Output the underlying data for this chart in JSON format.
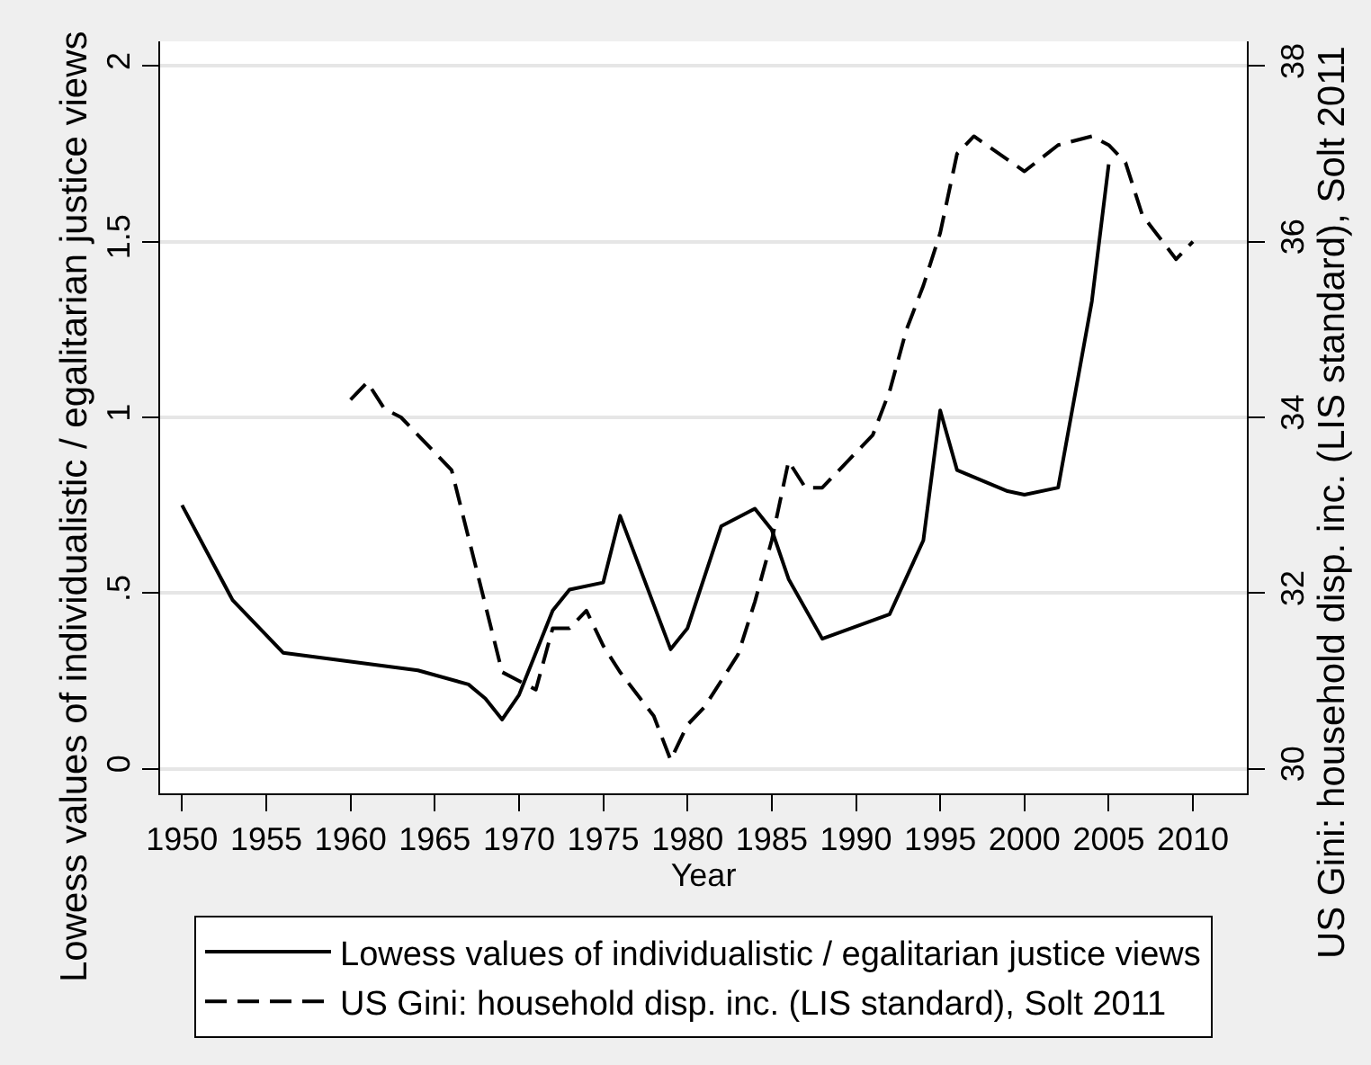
{
  "chart_data": {
    "type": "line",
    "xlabel": "Year",
    "ylabel": "Lowess values of individualistic / egalitarian justice views",
    "y2label": "US Gini: household disp. inc. (LIS standard), Solt 2011",
    "xlim": [
      1948.7,
      2013.2
    ],
    "xticks": [
      1950,
      1955,
      1960,
      1965,
      1970,
      1975,
      1980,
      1985,
      1990,
      1995,
      2000,
      2005,
      2010
    ],
    "ylim": [
      -0.07,
      2.07
    ],
    "yticks": [
      0,
      {
        "value": 0.5,
        "label": ".5"
      },
      1,
      1.5,
      2
    ],
    "y2lim": [
      29.72,
      38.28
    ],
    "y2ticks": [
      30,
      32,
      34,
      36,
      38
    ],
    "grid": "y",
    "legend": "bottom",
    "series": [
      {
        "name": "Lowess values of individualistic / egalitarian justice views",
        "color": "#000000",
        "line_style": "solid",
        "x": [
          1950,
          1953,
          1956,
          1964,
          1967,
          1968,
          1969,
          1970,
          1972,
          1973,
          1975,
          1976,
          1979,
          1980,
          1982,
          1984,
          1985,
          1986,
          1988,
          1992,
          1994,
          1995,
          1996,
          1999,
          2000,
          2002,
          2004,
          2005
        ],
        "values": [
          0.75,
          0.48,
          0.33,
          0.28,
          0.24,
          0.2,
          0.14,
          0.21,
          0.45,
          0.51,
          0.53,
          0.72,
          0.34,
          0.4,
          0.69,
          0.74,
          0.68,
          0.54,
          0.37,
          0.44,
          0.65,
          1.02,
          0.85,
          0.79,
          0.78,
          0.8,
          1.33,
          1.72
        ]
      },
      {
        "name": "US Gini: household disp. inc. (LIS standard), Solt 2011",
        "color": "#000000",
        "line_style": "dashed",
        "axis": "y2",
        "x": [
          1960,
          1961,
          1962,
          1963,
          1964,
          1965,
          1966,
          1969,
          1970,
          1971,
          1972,
          1973,
          1974,
          1975,
          1976,
          1978,
          1979,
          1980,
          1981,
          1982,
          1983,
          1984,
          1985,
          1986,
          1987,
          1988,
          1991,
          1992,
          1993,
          1994,
          1995,
          1996,
          1997,
          2000,
          2002,
          2004,
          2005,
          2006,
          2007,
          2009,
          2010
        ],
        "values": [
          34.2,
          34.4,
          34.1,
          34.0,
          33.8,
          33.6,
          33.4,
          31.1,
          31.0,
          30.9,
          31.6,
          31.6,
          31.8,
          31.4,
          31.1,
          30.6,
          30.1,
          30.5,
          30.7,
          31.0,
          31.3,
          31.9,
          32.6,
          33.5,
          33.2,
          33.2,
          33.8,
          34.3,
          35.0,
          35.5,
          36.1,
          37.0,
          37.2,
          36.8,
          37.1,
          37.2,
          37.1,
          36.9,
          36.3,
          35.8,
          36.0
        ]
      }
    ]
  }
}
